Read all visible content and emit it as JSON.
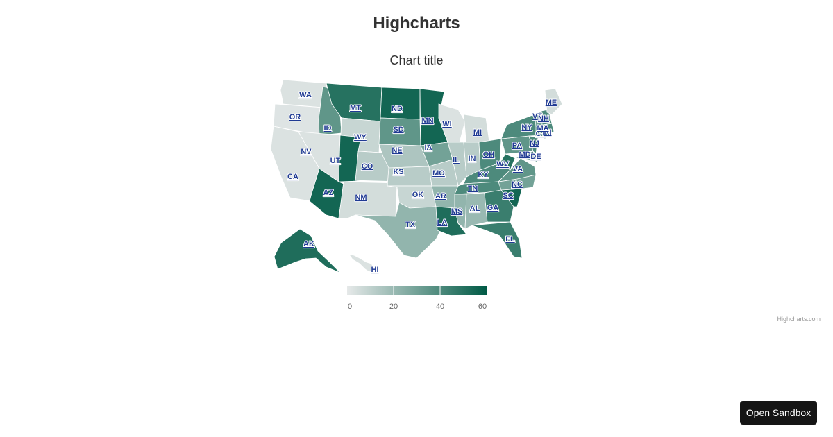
{
  "page": {
    "heading": "Highcharts",
    "sandbox_button": "Open Sandbox"
  },
  "chart_data": {
    "type": "heatmap",
    "subtype": "choropleth-map",
    "title": "Chart title",
    "color_axis": {
      "min": 0,
      "max": 60,
      "ticks": [
        0,
        20,
        40,
        60
      ],
      "min_color": "#e6e9e9",
      "max_color": "#005a45",
      "placement": "bottom"
    },
    "states": [
      {
        "code": "WA",
        "value": 3
      },
      {
        "code": "OR",
        "value": 2
      },
      {
        "code": "CA",
        "value": 3
      },
      {
        "code": "ID",
        "value": 35
      },
      {
        "code": "NV",
        "value": 3
      },
      {
        "code": "MT",
        "value": 50
      },
      {
        "code": "WY",
        "value": 8
      },
      {
        "code": "UT",
        "value": 55
      },
      {
        "code": "AZ",
        "value": 55
      },
      {
        "code": "CO",
        "value": 12
      },
      {
        "code": "NM",
        "value": 5
      },
      {
        "code": "ND",
        "value": 55
      },
      {
        "code": "SD",
        "value": 35
      },
      {
        "code": "NE",
        "value": 15
      },
      {
        "code": "KS",
        "value": 12
      },
      {
        "code": "OK",
        "value": 8
      },
      {
        "code": "TX",
        "value": 22
      },
      {
        "code": "MN",
        "value": 55
      },
      {
        "code": "IA",
        "value": 30
      },
      {
        "code": "MO",
        "value": 12
      },
      {
        "code": "AR",
        "value": 22
      },
      {
        "code": "LA",
        "value": 52
      },
      {
        "code": "WI",
        "value": 3
      },
      {
        "code": "IL",
        "value": 12
      },
      {
        "code": "MI",
        "value": 5
      },
      {
        "code": "IN",
        "value": 12
      },
      {
        "code": "OH",
        "value": 40
      },
      {
        "code": "KY",
        "value": 40
      },
      {
        "code": "TN",
        "value": 40
      },
      {
        "code": "MS",
        "value": 22
      },
      {
        "code": "AL",
        "value": 20
      },
      {
        "code": "GA",
        "value": 45
      },
      {
        "code": "FL",
        "value": 45
      },
      {
        "code": "SC",
        "value": 55
      },
      {
        "code": "NC",
        "value": 30
      },
      {
        "code": "VA",
        "value": 35
      },
      {
        "code": "WV",
        "value": 50
      },
      {
        "code": "PA",
        "value": 35
      },
      {
        "code": "NY",
        "value": 40
      },
      {
        "code": "MD",
        "value": 40
      },
      {
        "code": "NJ",
        "value": 40
      },
      {
        "code": "DE",
        "value": 40
      },
      {
        "code": "CT",
        "value": 40
      },
      {
        "code": "RI",
        "value": 40
      },
      {
        "code": "MA",
        "value": 40
      },
      {
        "code": "VT",
        "value": 30
      },
      {
        "code": "NH",
        "value": 40
      },
      {
        "code": "ME",
        "value": 5
      },
      {
        "code": "AK",
        "value": 52
      },
      {
        "code": "HI",
        "value": 3
      }
    ]
  },
  "credits": "Highcharts.com"
}
